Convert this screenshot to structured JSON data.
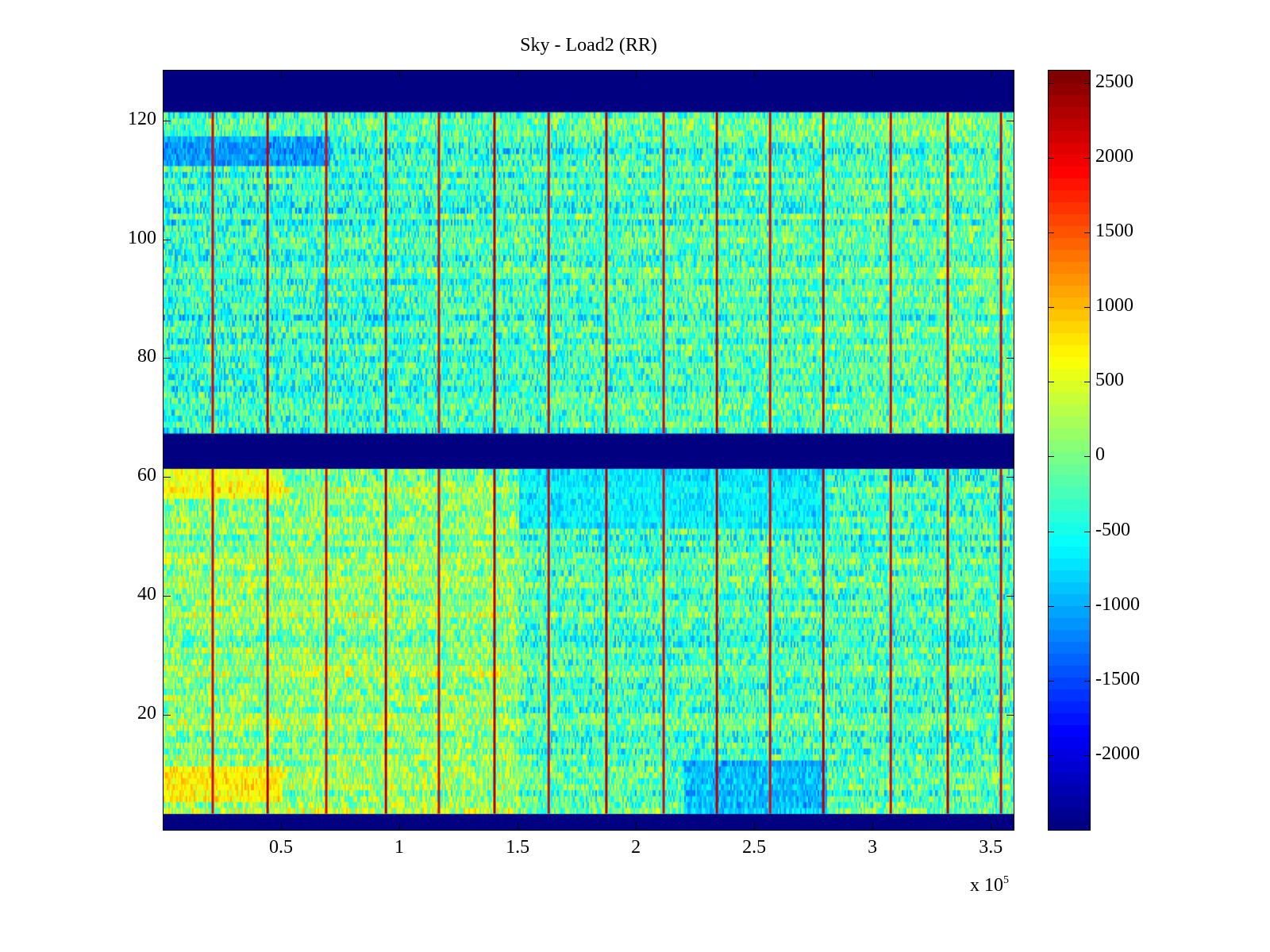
{
  "chart_data": {
    "type": "heatmap",
    "title": "Sky - Load2 (RR)",
    "xlabel": "",
    "ylabel": "",
    "x_multiplier_label": "x 10",
    "x_multiplier_exponent": "5",
    "xlim": [
      0,
      3.6
    ],
    "ylim": [
      0.5,
      128.5
    ],
    "xticks": [
      0.5,
      1,
      1.5,
      2,
      2.5,
      3,
      3.5
    ],
    "xtick_labels": [
      "0.5",
      "1",
      "1.5",
      "2",
      "2.5",
      "3",
      "3.5"
    ],
    "yticks": [
      20,
      40,
      60,
      80,
      100,
      120
    ],
    "ytick_labels": [
      "20",
      "40",
      "60",
      "80",
      "100",
      "120"
    ],
    "colorbar": {
      "colormap": "jet",
      "clim": [
        -2505,
        2590
      ],
      "ticks": [
        2500,
        2000,
        1500,
        1000,
        500,
        0,
        -500,
        -1000,
        -1500,
        -2000
      ],
      "tick_labels": [
        "2500",
        "2000",
        "1500",
        "1000",
        "500",
        "0",
        "-500",
        "-1000",
        "-1500",
        "-2000"
      ]
    },
    "empty_row_ranges": [
      [
        1,
        3
      ],
      [
        62,
        67
      ],
      [
        122,
        128
      ]
    ],
    "empty_value": -2505,
    "typical_value_range": [
      -1000,
      800
    ],
    "spike_columns_x": [
      0.208,
      0.44,
      0.688,
      0.94,
      1.164,
      1.399,
      1.628,
      1.872,
      2.114,
      2.339,
      2.564,
      2.789,
      3.074,
      3.315,
      3.54
    ],
    "spike_value": 2000,
    "notes_regions": [
      {
        "rows": [
          113,
          117
        ],
        "x": [
          0,
          0.7
        ],
        "value": -1500
      },
      {
        "rows": [
          57,
          61
        ],
        "x": [
          0,
          0.5
        ],
        "value": 1000
      },
      {
        "rows": [
          6,
          11
        ],
        "x": [
          0,
          0.5
        ],
        "value": 1100
      },
      {
        "rows": [
          4,
          12
        ],
        "x": [
          2.2,
          2.8
        ],
        "value": -1400
      },
      {
        "rows": [
          52,
          61
        ],
        "x": [
          1.5,
          2.8
        ],
        "value": -900
      }
    ]
  }
}
